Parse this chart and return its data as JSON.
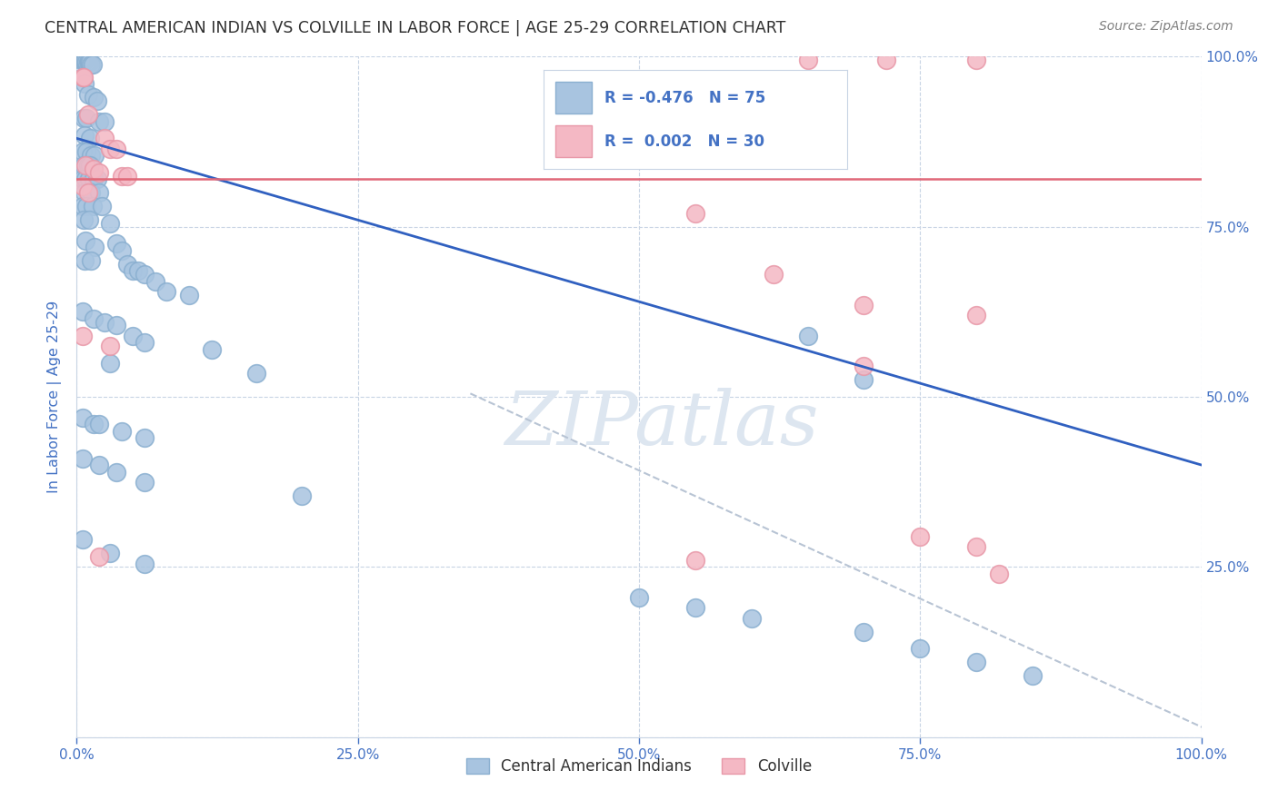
{
  "title": "CENTRAL AMERICAN INDIAN VS COLVILLE IN LABOR FORCE | AGE 25-29 CORRELATION CHART",
  "source": "Source: ZipAtlas.com",
  "ylabel": "In Labor Force | Age 25-29",
  "ytick_labels": [
    "",
    "25.0%",
    "50.0%",
    "75.0%",
    "100.0%"
  ],
  "ytick_values": [
    0,
    0.25,
    0.5,
    0.75,
    1.0
  ],
  "xlim": [
    0,
    1.0
  ],
  "ylim": [
    0,
    1.0
  ],
  "blue_color": "#a8c4e0",
  "blue_edge_color": "#8aafd0",
  "pink_color": "#f4b8c4",
  "pink_edge_color": "#e898a8",
  "blue_line_color": "#3060c0",
  "pink_line_color": "#e06878",
  "dashed_line_color": "#b8c4d4",
  "title_color": "#303030",
  "source_color": "#808080",
  "axis_color": "#4472c4",
  "legend_text_color": "#4472c4",
  "watermark_color": "#dde6f0",
  "gridline_color": "#c8d4e4",
  "background_color": "#ffffff",
  "blue_scatter": [
    [
      0.004,
      0.995
    ],
    [
      0.005,
      0.995
    ],
    [
      0.006,
      0.995
    ],
    [
      0.007,
      0.995
    ],
    [
      0.008,
      0.995
    ],
    [
      0.009,
      0.993
    ],
    [
      0.01,
      0.993
    ],
    [
      0.011,
      0.993
    ],
    [
      0.012,
      0.992
    ],
    [
      0.013,
      0.988
    ],
    [
      0.014,
      0.988
    ],
    [
      0.005,
      0.97
    ],
    [
      0.007,
      0.96
    ],
    [
      0.01,
      0.945
    ],
    [
      0.015,
      0.94
    ],
    [
      0.018,
      0.935
    ],
    [
      0.006,
      0.91
    ],
    [
      0.009,
      0.91
    ],
    [
      0.02,
      0.905
    ],
    [
      0.025,
      0.905
    ],
    [
      0.007,
      0.885
    ],
    [
      0.012,
      0.88
    ],
    [
      0.005,
      0.86
    ],
    [
      0.009,
      0.86
    ],
    [
      0.013,
      0.855
    ],
    [
      0.016,
      0.855
    ],
    [
      0.006,
      0.84
    ],
    [
      0.01,
      0.84
    ],
    [
      0.012,
      0.84
    ],
    [
      0.005,
      0.82
    ],
    [
      0.008,
      0.82
    ],
    [
      0.011,
      0.82
    ],
    [
      0.015,
      0.82
    ],
    [
      0.018,
      0.82
    ],
    [
      0.007,
      0.8
    ],
    [
      0.013,
      0.8
    ],
    [
      0.02,
      0.8
    ],
    [
      0.005,
      0.78
    ],
    [
      0.009,
      0.78
    ],
    [
      0.014,
      0.78
    ],
    [
      0.022,
      0.78
    ],
    [
      0.006,
      0.76
    ],
    [
      0.011,
      0.76
    ],
    [
      0.03,
      0.755
    ],
    [
      0.008,
      0.73
    ],
    [
      0.016,
      0.72
    ],
    [
      0.035,
      0.725
    ],
    [
      0.04,
      0.715
    ],
    [
      0.007,
      0.7
    ],
    [
      0.013,
      0.7
    ],
    [
      0.045,
      0.695
    ],
    [
      0.05,
      0.685
    ],
    [
      0.055,
      0.685
    ],
    [
      0.06,
      0.68
    ],
    [
      0.07,
      0.67
    ],
    [
      0.08,
      0.655
    ],
    [
      0.1,
      0.65
    ],
    [
      0.005,
      0.625
    ],
    [
      0.015,
      0.615
    ],
    [
      0.025,
      0.61
    ],
    [
      0.035,
      0.605
    ],
    [
      0.05,
      0.59
    ],
    [
      0.06,
      0.58
    ],
    [
      0.12,
      0.57
    ],
    [
      0.03,
      0.55
    ],
    [
      0.16,
      0.535
    ],
    [
      0.005,
      0.47
    ],
    [
      0.015,
      0.46
    ],
    [
      0.02,
      0.46
    ],
    [
      0.04,
      0.45
    ],
    [
      0.06,
      0.44
    ],
    [
      0.005,
      0.41
    ],
    [
      0.02,
      0.4
    ],
    [
      0.035,
      0.39
    ],
    [
      0.06,
      0.375
    ],
    [
      0.2,
      0.355
    ],
    [
      0.65,
      0.59
    ],
    [
      0.7,
      0.525
    ],
    [
      0.005,
      0.29
    ],
    [
      0.03,
      0.27
    ],
    [
      0.06,
      0.255
    ],
    [
      0.5,
      0.205
    ],
    [
      0.55,
      0.19
    ],
    [
      0.6,
      0.175
    ],
    [
      0.7,
      0.155
    ],
    [
      0.75,
      0.13
    ],
    [
      0.8,
      0.11
    ],
    [
      0.85,
      0.09
    ]
  ],
  "pink_scatter": [
    [
      0.005,
      0.97
    ],
    [
      0.006,
      0.97
    ],
    [
      0.65,
      0.995
    ],
    [
      0.72,
      0.995
    ],
    [
      0.8,
      0.995
    ],
    [
      0.01,
      0.915
    ],
    [
      0.025,
      0.88
    ],
    [
      0.03,
      0.865
    ],
    [
      0.035,
      0.865
    ],
    [
      0.008,
      0.84
    ],
    [
      0.015,
      0.835
    ],
    [
      0.02,
      0.83
    ],
    [
      0.04,
      0.825
    ],
    [
      0.045,
      0.825
    ],
    [
      0.005,
      0.81
    ],
    [
      0.01,
      0.8
    ],
    [
      0.55,
      0.77
    ],
    [
      0.62,
      0.68
    ],
    [
      0.7,
      0.635
    ],
    [
      0.8,
      0.62
    ],
    [
      0.005,
      0.59
    ],
    [
      0.03,
      0.575
    ],
    [
      0.7,
      0.545
    ],
    [
      0.75,
      0.295
    ],
    [
      0.8,
      0.28
    ],
    [
      0.02,
      0.265
    ],
    [
      0.55,
      0.26
    ],
    [
      0.82,
      0.24
    ]
  ],
  "blue_trend_x": [
    0.0,
    1.0
  ],
  "blue_trend_y": [
    0.88,
    0.4
  ],
  "pink_trend_y": 0.82,
  "dashed_trend_x": [
    0.35,
    1.02
  ],
  "dashed_trend_y": [
    0.505,
    0.0
  ],
  "legend_entries": [
    "Central American Indians",
    "Colville"
  ]
}
